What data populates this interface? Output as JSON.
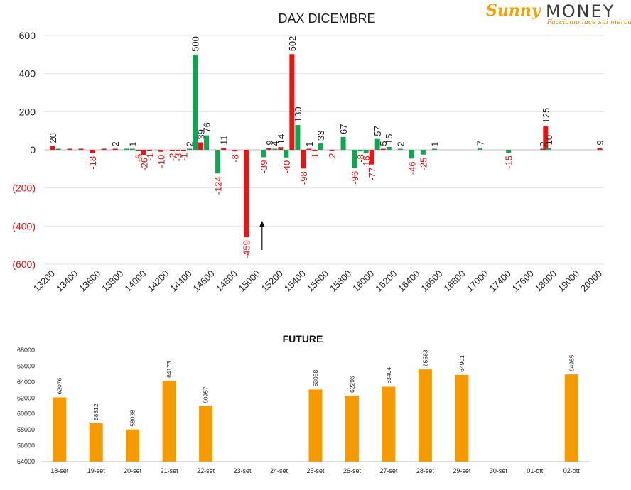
{
  "logo": {
    "brand_left": "Sunny",
    "brand_right": "MONEY",
    "tagline": "Facciamo luce sui mercati"
  },
  "colors": {
    "positive": "#0aa84f",
    "negative": "#ee1111",
    "future_bar": "#f59b00",
    "neg_label": "#dd1111",
    "grid": "#e4e4e4",
    "axis": "#bfbfbf",
    "text": "#222222"
  },
  "chart_data": [
    {
      "type": "bar",
      "title": "DAX DICEMBRE",
      "xlabel": "",
      "ylabel": "",
      "ylim": [
        -600,
        600
      ],
      "y_ticks": [
        {
          "value": 600,
          "label": "600"
        },
        {
          "value": 400,
          "label": "400"
        },
        {
          "value": 200,
          "label": "200"
        },
        {
          "value": 0,
          "label": "0"
        },
        {
          "value": -200,
          "label": "(200)"
        },
        {
          "value": -400,
          "label": "(400)"
        },
        {
          "value": -600,
          "label": "(600)"
        }
      ],
      "categories": [
        "13200",
        "13400",
        "13600",
        "13800",
        "14000",
        "14200",
        "14400",
        "14600",
        "14800",
        "15000",
        "15200",
        "15400",
        "15600",
        "15800",
        "16000",
        "16200",
        "16400",
        "16600",
        "16800",
        "17000",
        "17400",
        "17600",
        "18000",
        "19000",
        "20000"
      ],
      "grid": true,
      "legend": "none",
      "annotation": "arrow pointing up at strike 15100",
      "bars": [
        {
          "strike": 13200,
          "value": 20,
          "label": "20",
          "color": "red"
        },
        {
          "strike": 13250,
          "value": 0,
          "label": "",
          "color": "green"
        },
        {
          "strike": 13350,
          "value": 0,
          "label": "",
          "color": "red"
        },
        {
          "strike": 13450,
          "value": 0,
          "label": "",
          "color": "red"
        },
        {
          "strike": 13550,
          "value": -18,
          "label": "-18",
          "color": "red"
        },
        {
          "strike": 13650,
          "value": 0,
          "label": "",
          "color": "red"
        },
        {
          "strike": 13750,
          "value": 2,
          "label": "2",
          "color": "red"
        },
        {
          "strike": 13850,
          "value": 0,
          "label": "",
          "color": "green"
        },
        {
          "strike": 13900,
          "value": 1,
          "label": "1",
          "color": "green"
        },
        {
          "strike": 13950,
          "value": -6,
          "label": "-6",
          "color": "red"
        },
        {
          "strike": 14000,
          "value": -26,
          "label": "-26",
          "color": "red"
        },
        {
          "strike": 14050,
          "value": -1,
          "label": "-1",
          "color": "red"
        },
        {
          "strike": 14150,
          "value": -10,
          "label": "-10",
          "color": "red"
        },
        {
          "strike": 14250,
          "value": -2,
          "label": "-2",
          "color": "red"
        },
        {
          "strike": 14300,
          "value": -3,
          "label": "-3",
          "color": "red"
        },
        {
          "strike": 14350,
          "value": -1,
          "label": "-1",
          "color": "red"
        },
        {
          "strike": 14400,
          "value": 2,
          "label": "2",
          "color": "green"
        },
        {
          "strike": 14450,
          "value": 500,
          "label": "500",
          "color": "green"
        },
        {
          "strike": 14500,
          "value": 39,
          "label": "39",
          "color": "red"
        },
        {
          "strike": 14550,
          "value": 76,
          "label": "76",
          "color": "green"
        },
        {
          "strike": 14650,
          "value": -124,
          "label": "-124",
          "color": "green"
        },
        {
          "strike": 14700,
          "value": 11,
          "label": "11",
          "color": "red"
        },
        {
          "strike": 14800,
          "value": -8,
          "label": "-8",
          "color": "red"
        },
        {
          "strike": 14900,
          "value": -459,
          "label": "-459",
          "color": "red"
        },
        {
          "strike": 15050,
          "value": -39,
          "label": "-39",
          "color": "green"
        },
        {
          "strike": 15100,
          "value": 9,
          "label": "9",
          "color": "red"
        },
        {
          "strike": 15150,
          "value": 4,
          "label": "4",
          "color": "green"
        },
        {
          "strike": 15200,
          "value": 14,
          "label": "14",
          "color": "red"
        },
        {
          "strike": 15250,
          "value": -40,
          "label": "-40",
          "color": "green"
        },
        {
          "strike": 15300,
          "value": 502,
          "label": "502",
          "color": "red"
        },
        {
          "strike": 15350,
          "value": 130,
          "label": "130",
          "color": "green"
        },
        {
          "strike": 15400,
          "value": -98,
          "label": "-98",
          "color": "red"
        },
        {
          "strike": 15450,
          "value": 1,
          "label": "1",
          "color": "red"
        },
        {
          "strike": 15500,
          "value": -1,
          "label": "-1",
          "color": "red"
        },
        {
          "strike": 15550,
          "value": 33,
          "label": "33",
          "color": "green"
        },
        {
          "strike": 15650,
          "value": -2,
          "label": "-2",
          "color": "red"
        },
        {
          "strike": 15750,
          "value": 67,
          "label": "67",
          "color": "green"
        },
        {
          "strike": 15850,
          "value": -96,
          "label": "-96",
          "color": "green"
        },
        {
          "strike": 15900,
          "value": -8,
          "label": "-8",
          "color": "green"
        },
        {
          "strike": 15950,
          "value": -16,
          "label": "-16",
          "color": "green"
        },
        {
          "strike": 16000,
          "value": -77,
          "label": "-77",
          "color": "red"
        },
        {
          "strike": 16050,
          "value": 57,
          "label": "57",
          "color": "green"
        },
        {
          "strike": 16100,
          "value": 5,
          "label": "5",
          "color": "red"
        },
        {
          "strike": 16150,
          "value": 15,
          "label": "15",
          "color": "green"
        },
        {
          "strike": 16250,
          "value": 2,
          "label": "2",
          "color": "green"
        },
        {
          "strike": 16350,
          "value": -46,
          "label": "-46",
          "color": "green"
        },
        {
          "strike": 16450,
          "value": -25,
          "label": "-25",
          "color": "green"
        },
        {
          "strike": 16550,
          "value": 1,
          "label": "1",
          "color": "green"
        },
        {
          "strike": 16950,
          "value": 7,
          "label": "7",
          "color": "green"
        },
        {
          "strike": 17400,
          "value": -15,
          "label": "-15",
          "color": "green"
        },
        {
          "strike": 17800,
          "value": 2,
          "label": "2",
          "color": "red"
        },
        {
          "strike": 17850,
          "value": 125,
          "label": "125",
          "color": "red"
        },
        {
          "strike": 17900,
          "value": 10,
          "label": "10",
          "color": "green"
        },
        {
          "strike": 20000,
          "value": 9,
          "label": "9",
          "color": "red"
        }
      ]
    },
    {
      "type": "bar",
      "title": "FUTURE",
      "xlabel": "",
      "ylabel": "",
      "ylim": [
        54000,
        68000
      ],
      "y_ticks": [
        54000,
        56000,
        58000,
        60000,
        62000,
        64000,
        66000,
        68000
      ],
      "categories": [
        "18-set",
        "19-set",
        "20-set",
        "21-set",
        "22-set",
        "23-set",
        "24-set",
        "25-set",
        "26-set",
        "27-set",
        "28-set",
        "29-set",
        "30-set",
        "01-ott",
        "02-ott"
      ],
      "values": [
        62076,
        58812,
        58038,
        64173,
        60957,
        null,
        null,
        63058,
        62296,
        63404,
        65583,
        64901,
        null,
        null,
        64955
      ],
      "grid": false,
      "legend": "none"
    }
  ]
}
